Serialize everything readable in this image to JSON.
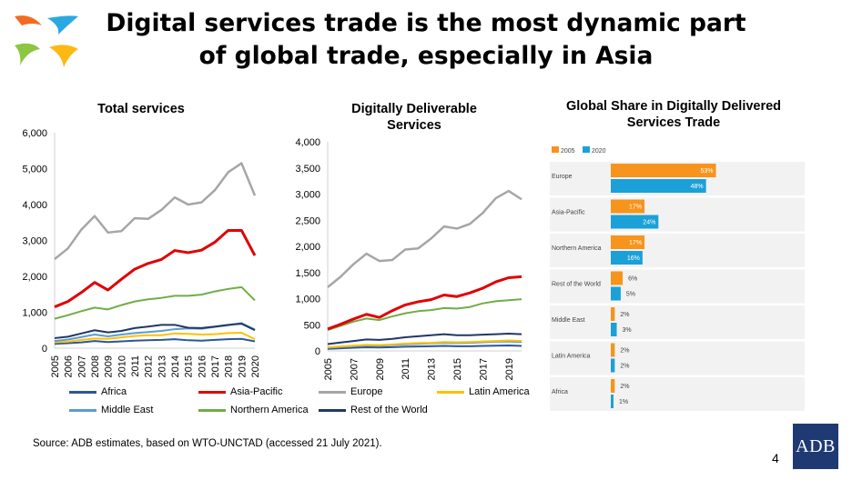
{
  "header": {
    "title_line1": "Digital services trade is the most dynamic part",
    "title_line2": "of global trade, especially in Asia"
  },
  "colors": {
    "Africa": "#2f5597",
    "Asia-Pacific": "#e00000",
    "Europe": "#a6a6a6",
    "Latin America": "#ffc000",
    "Middle East": "#5b9bd5",
    "Northern America": "#70ad47",
    "Rest of the World": "#203864",
    "bar2005": "#f7941d",
    "bar2020": "#1ba1d7",
    "logo": [
      "#f26b21",
      "#29a9e0",
      "#8dc63f",
      "#fdb913"
    ]
  },
  "legend": {
    "items": [
      "Africa",
      "Asia-Pacific",
      "Europe",
      "Latin America",
      "Middle East",
      "Northern America",
      "Rest of the World"
    ]
  },
  "footer": {
    "source": "Source: ADB estimates, based on WTO-UNCTAD (accessed 21 July 2021).",
    "page_number": "4",
    "logo_text": "ADB"
  },
  "chart_data": [
    {
      "type": "line",
      "title": "Total services",
      "x": [
        2005,
        2006,
        2007,
        2008,
        2009,
        2010,
        2011,
        2012,
        2013,
        2014,
        2015,
        2016,
        2017,
        2018,
        2019,
        2020
      ],
      "x_tick_labels": [
        "2005",
        "2006",
        "2007",
        "2008",
        "2009",
        "2010",
        "2011",
        "2012",
        "2013",
        "2014",
        "2015",
        "2016",
        "2017",
        "2018",
        "2019",
        "2020"
      ],
      "ylim": [
        0,
        6000
      ],
      "y_ticks": [
        0,
        1000,
        2000,
        3000,
        4000,
        5000,
        6000
      ],
      "y_tick_labels": [
        "0",
        "1,000",
        "2,000",
        "3,000",
        "4,000",
        "5,000",
        "6,000"
      ],
      "series": [
        {
          "name": "Europe",
          "values": [
            2480,
            2780,
            3300,
            3680,
            3220,
            3260,
            3620,
            3600,
            3850,
            4200,
            4000,
            4060,
            4400,
            4900,
            5150,
            4250
          ]
        },
        {
          "name": "Asia-Pacific",
          "values": [
            1150,
            1300,
            1550,
            1830,
            1620,
            1920,
            2200,
            2360,
            2470,
            2720,
            2660,
            2730,
            2950,
            3280,
            3280,
            2580
          ]
        },
        {
          "name": "Northern America",
          "values": [
            820,
            920,
            1030,
            1130,
            1080,
            1200,
            1300,
            1360,
            1400,
            1460,
            1460,
            1490,
            1580,
            1650,
            1700,
            1330
          ]
        },
        {
          "name": "Rest of the World",
          "values": [
            280,
            320,
            410,
            500,
            440,
            480,
            560,
            600,
            650,
            650,
            570,
            560,
            600,
            650,
            680,
            500
          ]
        },
        {
          "name": "Middle East",
          "values": [
            200,
            240,
            310,
            380,
            330,
            380,
            420,
            450,
            480,
            530,
            550,
            540,
            590,
            640,
            700,
            520
          ]
        },
        {
          "name": "Latin America",
          "values": [
            160,
            180,
            230,
            270,
            260,
            300,
            340,
            360,
            360,
            410,
            400,
            380,
            390,
            420,
            430,
            250
          ]
        },
        {
          "name": "Africa",
          "values": [
            120,
            140,
            160,
            200,
            170,
            190,
            210,
            220,
            230,
            250,
            220,
            210,
            230,
            250,
            260,
            190
          ]
        }
      ]
    },
    {
      "type": "line",
      "title": "Digitally Deliverable Services",
      "x": [
        2005,
        2006,
        2007,
        2008,
        2009,
        2010,
        2011,
        2012,
        2013,
        2014,
        2015,
        2016,
        2017,
        2018,
        2019,
        2020
      ],
      "x_tick_labels": [
        "2005",
        "2007",
        "2009",
        "2011",
        "2013",
        "2015",
        "2017",
        "2019"
      ],
      "ylim": [
        0,
        4000
      ],
      "y_ticks": [
        0,
        500,
        1000,
        1500,
        2000,
        2500,
        3000,
        3500,
        4000
      ],
      "y_tick_labels": [
        "0",
        "500",
        "1,000",
        "1,500",
        "2,000",
        "2,500",
        "3,000",
        "3,500",
        "4,000"
      ],
      "series": [
        {
          "name": "Europe",
          "values": [
            1220,
            1420,
            1660,
            1860,
            1720,
            1740,
            1940,
            1960,
            2150,
            2380,
            2340,
            2430,
            2640,
            2920,
            3060,
            2900
          ]
        },
        {
          "name": "Asia-Pacific",
          "values": [
            420,
            510,
            610,
            700,
            640,
            770,
            880,
            940,
            980,
            1070,
            1040,
            1110,
            1200,
            1320,
            1400,
            1420
          ]
        },
        {
          "name": "Northern America",
          "values": [
            400,
            480,
            560,
            620,
            590,
            660,
            720,
            760,
            780,
            820,
            810,
            840,
            910,
            950,
            970,
            990
          ]
        },
        {
          "name": "Rest of the World",
          "values": [
            130,
            160,
            190,
            220,
            210,
            230,
            260,
            280,
            300,
            320,
            300,
            300,
            310,
            320,
            330,
            320
          ]
        },
        {
          "name": "Latin America",
          "values": [
            70,
            85,
            100,
            115,
            110,
            125,
            140,
            150,
            155,
            170,
            165,
            170,
            180,
            190,
            200,
            190
          ]
        },
        {
          "name": "Middle East",
          "values": [
            60,
            75,
            90,
            105,
            100,
            115,
            125,
            135,
            145,
            155,
            150,
            155,
            165,
            175,
            180,
            170
          ]
        },
        {
          "name": "Africa",
          "values": [
            40,
            50,
            60,
            70,
            65,
            72,
            80,
            85,
            90,
            95,
            90,
            90,
            95,
            100,
            105,
            95
          ]
        }
      ]
    },
    {
      "type": "bar",
      "title": "Global Share in Digitally Delivered Services Trade",
      "categories": [
        "Europe",
        "Asia-Pacific",
        "Northern America",
        "Rest of the World",
        "Middle East",
        "Latin America",
        "Africa"
      ],
      "series": [
        {
          "name": "2005",
          "values": [
            53,
            17,
            17,
            6,
            2,
            2,
            2
          ],
          "labels": [
            "53%",
            "17%",
            "17%",
            "6%",
            "2%",
            "2%",
            "2%"
          ]
        },
        {
          "name": "2020",
          "values": [
            48,
            24,
            16,
            5,
            3,
            2,
            1
          ],
          "labels": [
            "48%",
            "24%",
            "16%",
            "5%",
            "3%",
            "2%",
            "1%"
          ]
        }
      ],
      "xlim": [
        0,
        100
      ],
      "legend_position": "top-left"
    }
  ]
}
